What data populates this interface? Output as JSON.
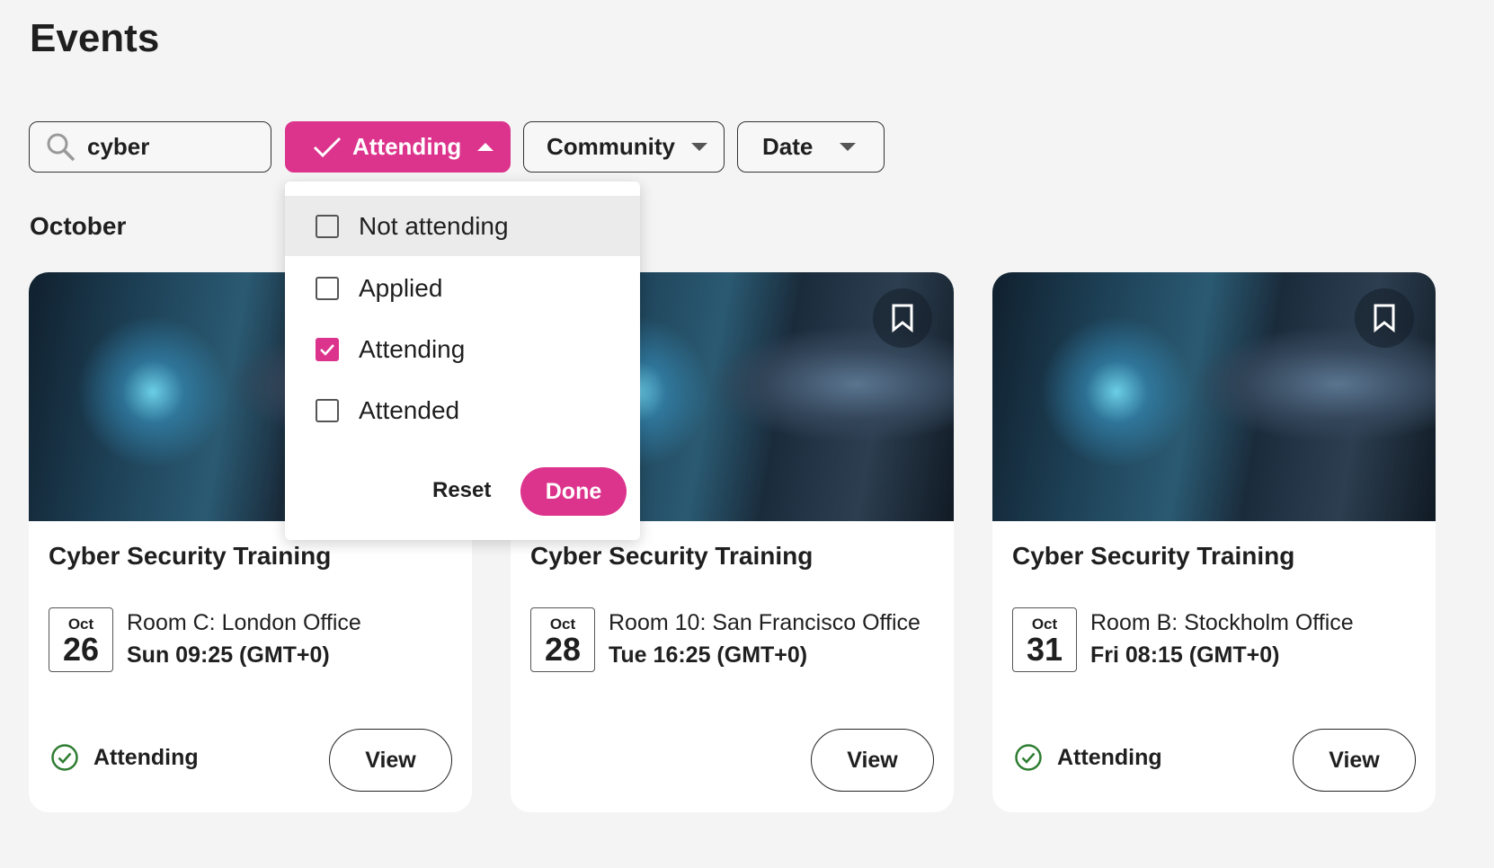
{
  "page": {
    "title": "Events",
    "section": "October"
  },
  "filters": {
    "search": {
      "value": "cyber",
      "icon": "search-icon"
    },
    "attending": {
      "label": "Attending",
      "active": true,
      "icon": "check-icon"
    },
    "community": {
      "label": "Community"
    },
    "date": {
      "label": "Date"
    }
  },
  "dropdown": {
    "options": [
      {
        "label": "Not attending",
        "checked": false
      },
      {
        "label": "Applied",
        "checked": false
      },
      {
        "label": "Attending",
        "checked": true
      },
      {
        "label": "Attended",
        "checked": false
      }
    ],
    "reset_label": "Reset",
    "done_label": "Done"
  },
  "cards": [
    {
      "title": "Cyber Security Training",
      "month": "Oct",
      "day": "26",
      "location": "Room C: London Office",
      "time": "Sun 09:25 (GMT+0)",
      "status": "Attending",
      "view_label": "View"
    },
    {
      "title": "Cyber Security Training",
      "month": "Oct",
      "day": "28",
      "location": "Room 10: San Francisco Office",
      "time": "Tue 16:25 (GMT+0)",
      "status": "",
      "view_label": "View"
    },
    {
      "title": "Cyber Security Training",
      "month": "Oct",
      "day": "31",
      "location": "Room B: Stockholm Office",
      "time": "Fri 08:15 (GMT+0)",
      "status": "Attending",
      "view_label": "View"
    }
  ],
  "colors": {
    "accent": "#dc348d",
    "attending_green": "#2e7d32",
    "background": "#f4f4f4"
  }
}
